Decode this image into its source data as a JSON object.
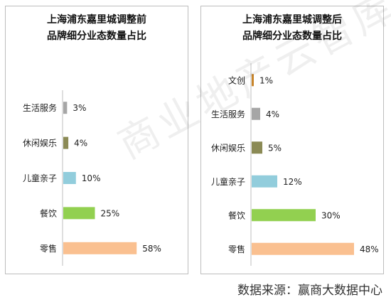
{
  "chart_data": [
    {
      "type": "bar",
      "orientation": "horizontal",
      "title": [
        "上海浦东嘉里城调整前",
        "品牌细分业态数量占比"
      ],
      "categories": [
        "生活服务",
        "休闲娱乐",
        "儿童亲子",
        "餐饮",
        "零售"
      ],
      "values": [
        3,
        4,
        10,
        25,
        58
      ],
      "value_labels": [
        "3%",
        "4%",
        "10%",
        "25%",
        "58%"
      ],
      "colors": [
        "#a6a6a6",
        "#8b8a55",
        "#92cddc",
        "#92d050",
        "#fac090"
      ],
      "unit": "%"
    },
    {
      "type": "bar",
      "orientation": "horizontal",
      "title": [
        "上海浦东嘉里城调整后",
        "品牌细分业态数量占比"
      ],
      "categories": [
        "文创",
        "生活服务",
        "休闲娱乐",
        "儿童亲子",
        "餐饮",
        "零售"
      ],
      "values": [
        1,
        4,
        5,
        12,
        30,
        48
      ],
      "value_labels": [
        "1%",
        "4%",
        "5%",
        "12%",
        "30%",
        "48%"
      ],
      "colors": [
        "#c8852b",
        "#a6a6a6",
        "#8b8a55",
        "#92cddc",
        "#92d050",
        "#fac090"
      ],
      "unit": "%"
    }
  ],
  "watermark": "商业地产云智库",
  "source": "数据来源：赢商大数据中心"
}
